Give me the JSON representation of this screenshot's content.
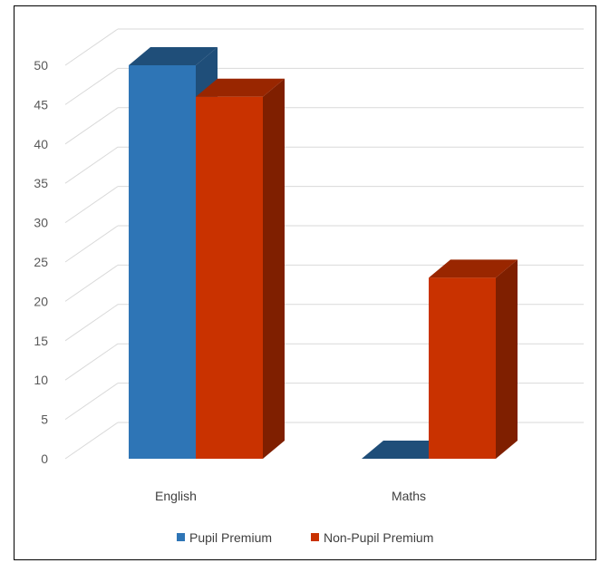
{
  "chart_data": {
    "type": "bar",
    "style": "3d-clustered-column",
    "categories": [
      "English",
      "Maths"
    ],
    "series": [
      {
        "name": "Pupil Premium",
        "values": [
          50,
          0
        ],
        "color": "#2E75B6",
        "top_color": "#1F4E79",
        "side_color": "#1F4E79"
      },
      {
        "name": "Non-Pupil Premium",
        "values": [
          46,
          23
        ],
        "color": "#C93200",
        "top_color": "#992600",
        "side_color": "#7F1F00"
      }
    ],
    "ylim": [
      0,
      50
    ],
    "yticks": [
      0,
      5,
      10,
      15,
      20,
      25,
      30,
      35,
      40,
      45,
      50
    ],
    "grid": true,
    "legend": "bottom",
    "title": "",
    "xlabel": "",
    "ylabel": ""
  }
}
